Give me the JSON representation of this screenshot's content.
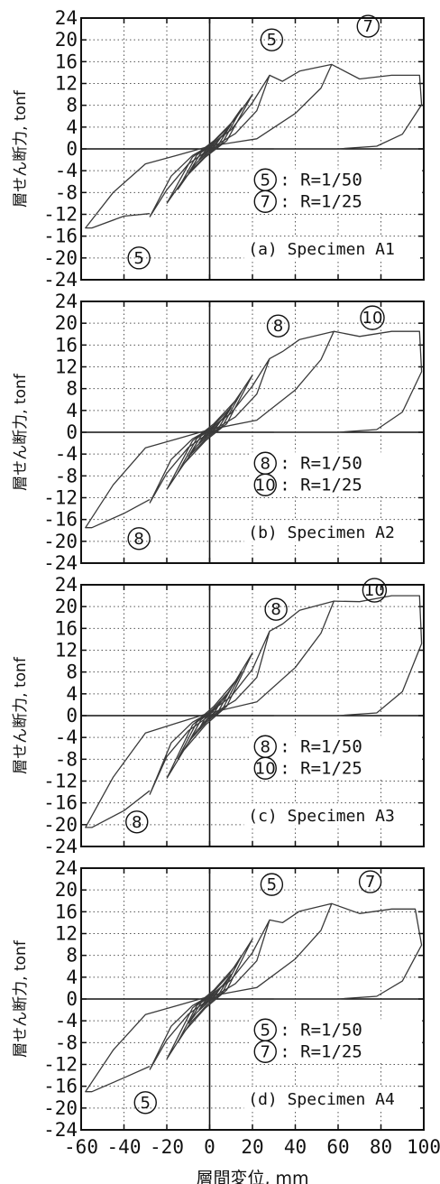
{
  "panels": [
    {
      "ylabel": "層せん断力, tonf",
      "caption": "(a) Specimen A1",
      "markers": [
        "5",
        "7",
        "5"
      ],
      "legend": [
        {
          "marker": "5",
          "text": ": R=1/50"
        },
        {
          "marker": "7",
          "text": ": R=1/25"
        }
      ]
    },
    {
      "ylabel": "層せん断力, tonf",
      "caption": "(b) Specimen A2",
      "markers": [
        "8",
        "10",
        "8"
      ],
      "legend": [
        {
          "marker": "8",
          "text": ": R=1/50"
        },
        {
          "marker": "10",
          "text": ": R=1/25"
        }
      ]
    },
    {
      "ylabel": "層せん断力, tonf",
      "caption": "(c) Specimen A3",
      "markers": [
        "8",
        "10",
        "8"
      ],
      "legend": [
        {
          "marker": "8",
          "text": ": R=1/50"
        },
        {
          "marker": "10",
          "text": ": R=1/25"
        }
      ]
    },
    {
      "ylabel": "層せん断力, tonf",
      "caption": "(d) Specimen A4",
      "markers": [
        "5",
        "7",
        "5"
      ],
      "legend": [
        {
          "marker": "5",
          "text": ": R=1/50"
        },
        {
          "marker": "7",
          "text": ": R=1/25"
        }
      ]
    }
  ],
  "xlabel": "層間変位, mm",
  "colors": {
    "line": "#3a3a3a",
    "grid": "#555555",
    "axis": "#111111"
  },
  "chart_data": [
    {
      "type": "line",
      "xlim": [
        -60,
        100
      ],
      "ylim": [
        -24,
        24
      ],
      "xticks": [
        "-60",
        "-40",
        "-20",
        "0",
        "20",
        "40",
        "60",
        "80",
        "100"
      ],
      "yticks": [
        "24",
        "20",
        "16",
        "12",
        "8",
        "4",
        "0",
        "-4",
        "-8",
        "-12",
        "-16",
        "-20",
        "-24"
      ],
      "grid": true,
      "peak_pos": [
        28,
        13.5
      ],
      "peak_neg": [
        -28,
        -12.5
      ],
      "r1_pos": [
        57,
        15.5
      ],
      "r1_neg": [
        -58,
        -14.5
      ],
      "r2_pos": [
        98,
        13.5
      ],
      "inner": [
        [
          5,
          2
        ],
        [
          10,
          4.5
        ],
        [
          15,
          7.5
        ],
        [
          20,
          10
        ]
      ]
    },
    {
      "type": "line",
      "xlim": [
        -60,
        100
      ],
      "ylim": [
        -24,
        24
      ],
      "xticks": [
        "-60",
        "-40",
        "-20",
        "0",
        "20",
        "40",
        "60",
        "80",
        "100"
      ],
      "yticks": [
        "24",
        "20",
        "16",
        "12",
        "8",
        "4",
        "0",
        "-4",
        "-8",
        "-12",
        "-16",
        "-20",
        "-24"
      ],
      "grid": true,
      "peak_pos": [
        28,
        13.5
      ],
      "peak_neg": [
        -28,
        -13
      ],
      "r1_pos": [
        58,
        18.5
      ],
      "r1_neg": [
        -58,
        -17.5
      ],
      "r2_pos": [
        98,
        18.5
      ],
      "inner": [
        [
          5,
          2
        ],
        [
          10,
          4.5
        ],
        [
          15,
          7.5
        ],
        [
          20,
          10.5
        ]
      ]
    },
    {
      "type": "line",
      "xlim": [
        -60,
        100
      ],
      "ylim": [
        -24,
        24
      ],
      "xticks": [
        "-60",
        "-40",
        "-20",
        "0",
        "20",
        "40",
        "60",
        "80",
        "100"
      ],
      "yticks": [
        "24",
        "20",
        "16",
        "12",
        "8",
        "4",
        "0",
        "-4",
        "-8",
        "-12",
        "-16",
        "-20",
        "-24"
      ],
      "grid": true,
      "peak_pos": [
        28,
        15.5
      ],
      "peak_neg": [
        -28,
        -14.5
      ],
      "r1_pos": [
        58,
        21
      ],
      "r1_neg": [
        -58,
        -20.5
      ],
      "r2_pos": [
        98,
        22
      ],
      "inner": [
        [
          5,
          2.5
        ],
        [
          10,
          5
        ],
        [
          15,
          8
        ],
        [
          20,
          11.5
        ]
      ]
    },
    {
      "type": "line",
      "xlim": [
        -60,
        100
      ],
      "ylim": [
        -24,
        24
      ],
      "xticks": [
        "-60",
        "-40",
        "-20",
        "0",
        "20",
        "40",
        "60",
        "80",
        "100"
      ],
      "yticks": [
        "24",
        "20",
        "16",
        "12",
        "8",
        "4",
        "0",
        "-4",
        "-8",
        "-12",
        "-16",
        "-20",
        "-24"
      ],
      "grid": true,
      "peak_pos": [
        28,
        14.5
      ],
      "peak_neg": [
        -28,
        -13
      ],
      "r1_pos": [
        57,
        17.5
      ],
      "r1_neg": [
        -58,
        -17
      ],
      "r2_pos": [
        96,
        16.5
      ],
      "inner": [
        [
          5,
          2
        ],
        [
          10,
          4.5
        ],
        [
          15,
          8
        ],
        [
          20,
          11
        ]
      ]
    }
  ]
}
